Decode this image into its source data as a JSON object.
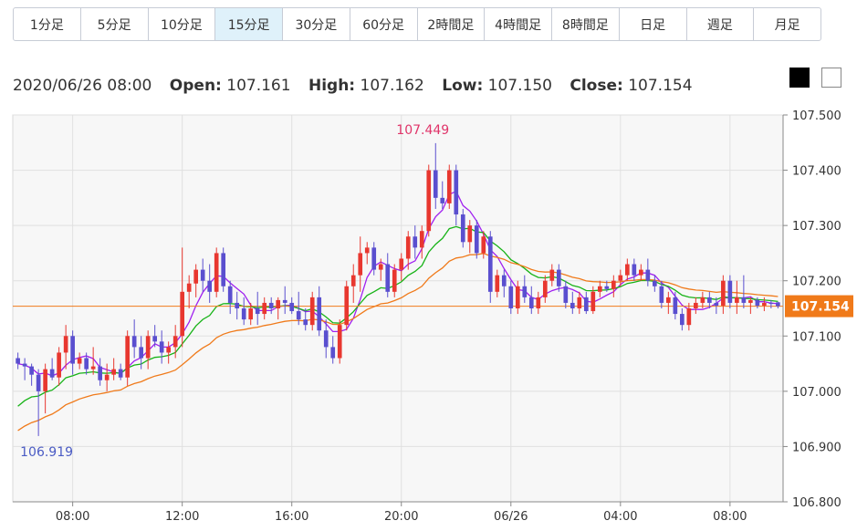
{
  "tabs": [
    {
      "label": "1分足",
      "active": false
    },
    {
      "label": "5分足",
      "active": false
    },
    {
      "label": "10分足",
      "active": false
    },
    {
      "label": "15分足",
      "active": true
    },
    {
      "label": "30分足",
      "active": false
    },
    {
      "label": "60分足",
      "active": false
    },
    {
      "label": "2時間足",
      "active": false
    },
    {
      "label": "4時間足",
      "active": false
    },
    {
      "label": "8時間足",
      "active": false
    },
    {
      "label": "日足",
      "active": false
    },
    {
      "label": "週足",
      "active": false
    },
    {
      "label": "月足",
      "active": false
    }
  ],
  "ohlc": {
    "datetime": "2020/06/26 08:00",
    "open_label": "Open:",
    "open": "107.161",
    "high_label": "High:",
    "high": "107.162",
    "low_label": "Low:",
    "low": "107.150",
    "close_label": "Close:",
    "close": "107.154"
  },
  "theme_buttons": [
    "dark-theme",
    "light-theme"
  ],
  "chart_data": {
    "type": "candlestick",
    "ylim": [
      106.8,
      107.5
    ],
    "y_ticks": [
      "107.500",
      "107.400",
      "107.300",
      "107.200",
      "107.100",
      "107.000",
      "106.900",
      "106.800"
    ],
    "x_ticks": [
      {
        "label": "08:00",
        "index": 8
      },
      {
        "label": "12:00",
        "index": 24
      },
      {
        "label": "16:00",
        "index": 40
      },
      {
        "label": "20:00",
        "index": 56
      },
      {
        "label": "06/26",
        "index": 72
      },
      {
        "label": "04:00",
        "index": 88
      },
      {
        "label": "08:00",
        "index": 104
      }
    ],
    "max_annotation": {
      "label": "107.449",
      "value": 107.449,
      "index": 61
    },
    "min_annotation": {
      "label": "106.919",
      "value": 106.919,
      "index": 3
    },
    "last_price": {
      "label": "107.154",
      "value": 107.154
    },
    "colors": {
      "up": "#e8372f",
      "down": "#5a4fcf",
      "ma_fast": "#a020f0",
      "ma_mid": "#17b317",
      "ma_slow": "#f07a1a",
      "last_price": "#f07a1a"
    },
    "candles": [
      [
        107.06,
        107.07,
        107.04,
        107.05
      ],
      [
        107.05,
        107.06,
        107.02,
        107.045
      ],
      [
        107.045,
        107.05,
        107.01,
        107.03
      ],
      [
        107.03,
        107.04,
        106.919,
        107.0
      ],
      [
        107.0,
        107.05,
        106.96,
        107.04
      ],
      [
        107.04,
        107.06,
        107.02,
        107.025
      ],
      [
        107.025,
        107.08,
        107.01,
        107.07
      ],
      [
        107.07,
        107.12,
        107.04,
        107.1
      ],
      [
        107.1,
        107.11,
        107.03,
        107.05
      ],
      [
        107.05,
        107.07,
        107.04,
        107.06
      ],
      [
        107.06,
        107.07,
        107.03,
        107.04
      ],
      [
        107.04,
        107.08,
        107.03,
        107.045
      ],
      [
        107.045,
        107.06,
        107.01,
        107.02
      ],
      [
        107.02,
        107.05,
        107.0,
        107.03
      ],
      [
        107.03,
        107.06,
        107.02,
        107.04
      ],
      [
        107.04,
        107.05,
        107.02,
        107.025
      ],
      [
        107.025,
        107.11,
        107.01,
        107.1
      ],
      [
        107.1,
        107.13,
        107.06,
        107.08
      ],
      [
        107.08,
        107.1,
        107.04,
        107.06
      ],
      [
        107.06,
        107.11,
        107.04,
        107.1
      ],
      [
        107.1,
        107.12,
        107.08,
        107.09
      ],
      [
        107.09,
        107.11,
        107.05,
        107.07
      ],
      [
        107.07,
        107.09,
        107.05,
        107.08
      ],
      [
        107.08,
        107.12,
        107.06,
        107.1
      ],
      [
        107.1,
        107.26,
        107.08,
        107.18
      ],
      [
        107.18,
        107.21,
        107.15,
        107.195
      ],
      [
        107.195,
        107.23,
        107.17,
        107.22
      ],
      [
        107.22,
        107.24,
        107.18,
        107.2
      ],
      [
        107.2,
        107.23,
        107.16,
        107.18
      ],
      [
        107.18,
        107.26,
        107.17,
        107.25
      ],
      [
        107.25,
        107.26,
        107.18,
        107.19
      ],
      [
        107.19,
        107.2,
        107.14,
        107.16
      ],
      [
        107.16,
        107.18,
        107.13,
        107.15
      ],
      [
        107.15,
        107.17,
        107.12,
        107.13
      ],
      [
        107.13,
        107.16,
        107.12,
        107.15
      ],
      [
        107.15,
        107.18,
        107.12,
        107.14
      ],
      [
        107.14,
        107.17,
        107.13,
        107.16
      ],
      [
        107.16,
        107.17,
        107.14,
        107.15
      ],
      [
        107.15,
        107.17,
        107.13,
        107.165
      ],
      [
        107.165,
        107.19,
        107.14,
        107.16
      ],
      [
        107.16,
        107.17,
        107.14,
        107.145
      ],
      [
        107.145,
        107.18,
        107.12,
        107.13
      ],
      [
        107.13,
        107.15,
        107.11,
        107.12
      ],
      [
        107.12,
        107.18,
        107.11,
        107.17
      ],
      [
        107.17,
        107.19,
        107.1,
        107.11
      ],
      [
        107.11,
        107.13,
        107.06,
        107.08
      ],
      [
        107.08,
        107.1,
        107.05,
        107.06
      ],
      [
        107.06,
        107.13,
        107.05,
        107.12
      ],
      [
        107.12,
        107.2,
        107.11,
        107.19
      ],
      [
        107.19,
        107.23,
        107.16,
        107.21
      ],
      [
        107.21,
        107.28,
        107.18,
        107.25
      ],
      [
        107.25,
        107.27,
        107.23,
        107.26
      ],
      [
        107.26,
        107.27,
        107.21,
        107.22
      ],
      [
        107.22,
        107.24,
        107.2,
        107.23
      ],
      [
        107.23,
        107.25,
        107.17,
        107.18
      ],
      [
        107.18,
        107.23,
        107.17,
        107.22
      ],
      [
        107.22,
        107.25,
        107.2,
        107.24
      ],
      [
        107.24,
        107.29,
        107.22,
        107.28
      ],
      [
        107.28,
        107.3,
        107.24,
        107.26
      ],
      [
        107.26,
        107.3,
        107.24,
        107.29
      ],
      [
        107.29,
        107.41,
        107.28,
        107.4
      ],
      [
        107.4,
        107.449,
        107.33,
        107.35
      ],
      [
        107.35,
        107.38,
        107.33,
        107.34
      ],
      [
        107.34,
        107.41,
        107.33,
        107.4
      ],
      [
        107.4,
        107.41,
        107.3,
        107.32
      ],
      [
        107.32,
        107.33,
        107.26,
        107.27
      ],
      [
        107.27,
        107.31,
        107.25,
        107.3
      ],
      [
        107.3,
        107.31,
        107.24,
        107.25
      ],
      [
        107.25,
        107.29,
        107.24,
        107.28
      ],
      [
        107.28,
        107.29,
        107.16,
        107.18
      ],
      [
        107.18,
        107.22,
        107.17,
        107.21
      ],
      [
        107.21,
        107.22,
        107.17,
        107.19
      ],
      [
        107.19,
        107.2,
        107.14,
        107.15
      ],
      [
        107.15,
        107.2,
        107.14,
        107.19
      ],
      [
        107.19,
        107.21,
        107.16,
        107.17
      ],
      [
        107.17,
        107.19,
        107.14,
        107.15
      ],
      [
        107.15,
        107.18,
        107.14,
        107.17
      ],
      [
        107.17,
        107.21,
        107.16,
        107.2
      ],
      [
        107.2,
        107.23,
        107.19,
        107.22
      ],
      [
        107.22,
        107.23,
        107.18,
        107.19
      ],
      [
        107.19,
        107.2,
        107.15,
        107.16
      ],
      [
        107.16,
        107.18,
        107.14,
        107.15
      ],
      [
        107.15,
        107.18,
        107.14,
        107.17
      ],
      [
        107.17,
        107.18,
        107.14,
        107.145
      ],
      [
        107.145,
        107.19,
        107.14,
        107.18
      ],
      [
        107.18,
        107.2,
        107.17,
        107.19
      ],
      [
        107.19,
        107.2,
        107.18,
        107.185
      ],
      [
        107.185,
        107.21,
        107.17,
        107.2
      ],
      [
        107.2,
        107.22,
        107.19,
        107.21
      ],
      [
        107.21,
        107.24,
        107.2,
        107.23
      ],
      [
        107.23,
        107.24,
        107.2,
        107.21
      ],
      [
        107.21,
        107.23,
        107.2,
        107.22
      ],
      [
        107.22,
        107.24,
        107.19,
        107.2
      ],
      [
        107.2,
        107.21,
        107.18,
        107.19
      ],
      [
        107.19,
        107.2,
        107.15,
        107.16
      ],
      [
        107.16,
        107.18,
        107.14,
        107.17
      ],
      [
        107.17,
        107.18,
        107.13,
        107.14
      ],
      [
        107.14,
        107.15,
        107.11,
        107.12
      ],
      [
        107.12,
        107.16,
        107.11,
        107.15
      ],
      [
        107.15,
        107.17,
        107.14,
        107.16
      ],
      [
        107.16,
        107.18,
        107.15,
        107.17
      ],
      [
        107.17,
        107.18,
        107.15,
        107.16
      ],
      [
        107.16,
        107.17,
        107.14,
        107.155
      ],
      [
        107.155,
        107.21,
        107.14,
        107.2
      ],
      [
        107.2,
        107.21,
        107.15,
        107.16
      ],
      [
        107.16,
        107.2,
        107.14,
        107.17
      ],
      [
        107.17,
        107.21,
        107.15,
        107.16
      ],
      [
        107.16,
        107.17,
        107.14,
        107.165
      ],
      [
        107.165,
        107.17,
        107.15,
        107.155
      ],
      [
        107.155,
        107.17,
        107.145,
        107.16
      ],
      [
        107.16,
        107.165,
        107.15,
        107.158
      ],
      [
        107.161,
        107.162,
        107.15,
        107.154
      ]
    ]
  }
}
